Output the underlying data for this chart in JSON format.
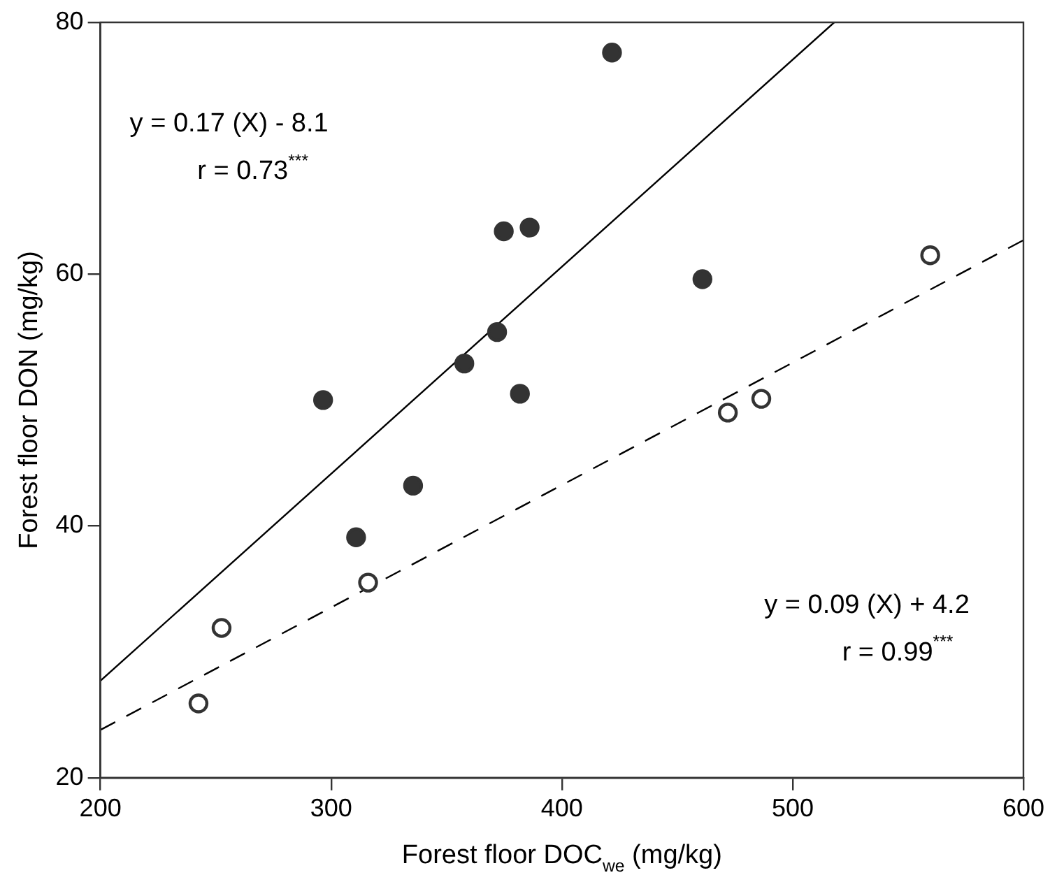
{
  "chart_data": {
    "type": "scatter",
    "xlabel": "Forest floor DOC$_{we}$ (mg/kg)",
    "ylabel": "Forest floor DON (mg/kg)",
    "xlim": [
      200,
      600
    ],
    "xticks": [
      200,
      300,
      400,
      500,
      600
    ],
    "ylim": [
      20,
      80
    ],
    "yticks": [
      20,
      40,
      60,
      80
    ],
    "grid": false,
    "legend": false,
    "marker": "circle",
    "series": [
      {
        "color": "#333333",
        "x": [
          421.7,
          374.8,
          386.0,
          460.9,
          371.9,
          357.7,
          381.8,
          296.5,
          335.5,
          310.8
        ],
        "values": [
          77.6,
          63.4,
          63.7,
          59.6,
          55.4,
          52.9,
          50.5,
          50.0,
          43.2,
          39.1
        ]
      },
      {
        "color": "#ffffff",
        "x": [
          252.5,
          242.5,
          316.0,
          471.9,
          486.4,
          559.6
        ],
        "values": [
          31.9,
          25.9,
          35.5,
          49.0,
          50.1,
          61.5
        ]
      },
      {
        "type": "line",
        "color": "#000000",
        "line_style": "solid",
        "marker": "none",
        "x": [
          200,
          518
        ],
        "values": [
          27.7,
          80
        ]
      },
      {
        "type": "line",
        "color": "#000000",
        "line_style": "dashed",
        "marker": "none",
        "x": [
          200,
          600
        ],
        "values": [
          23.8,
          62.7
        ]
      }
    ],
    "annotations": [
      "y = 0.17 (X) - 8.1",
      "r = 0.73$^{***}$",
      "y = 0.09 (X) + 4.2",
      "r = 0.99$^{***}$"
    ]
  }
}
